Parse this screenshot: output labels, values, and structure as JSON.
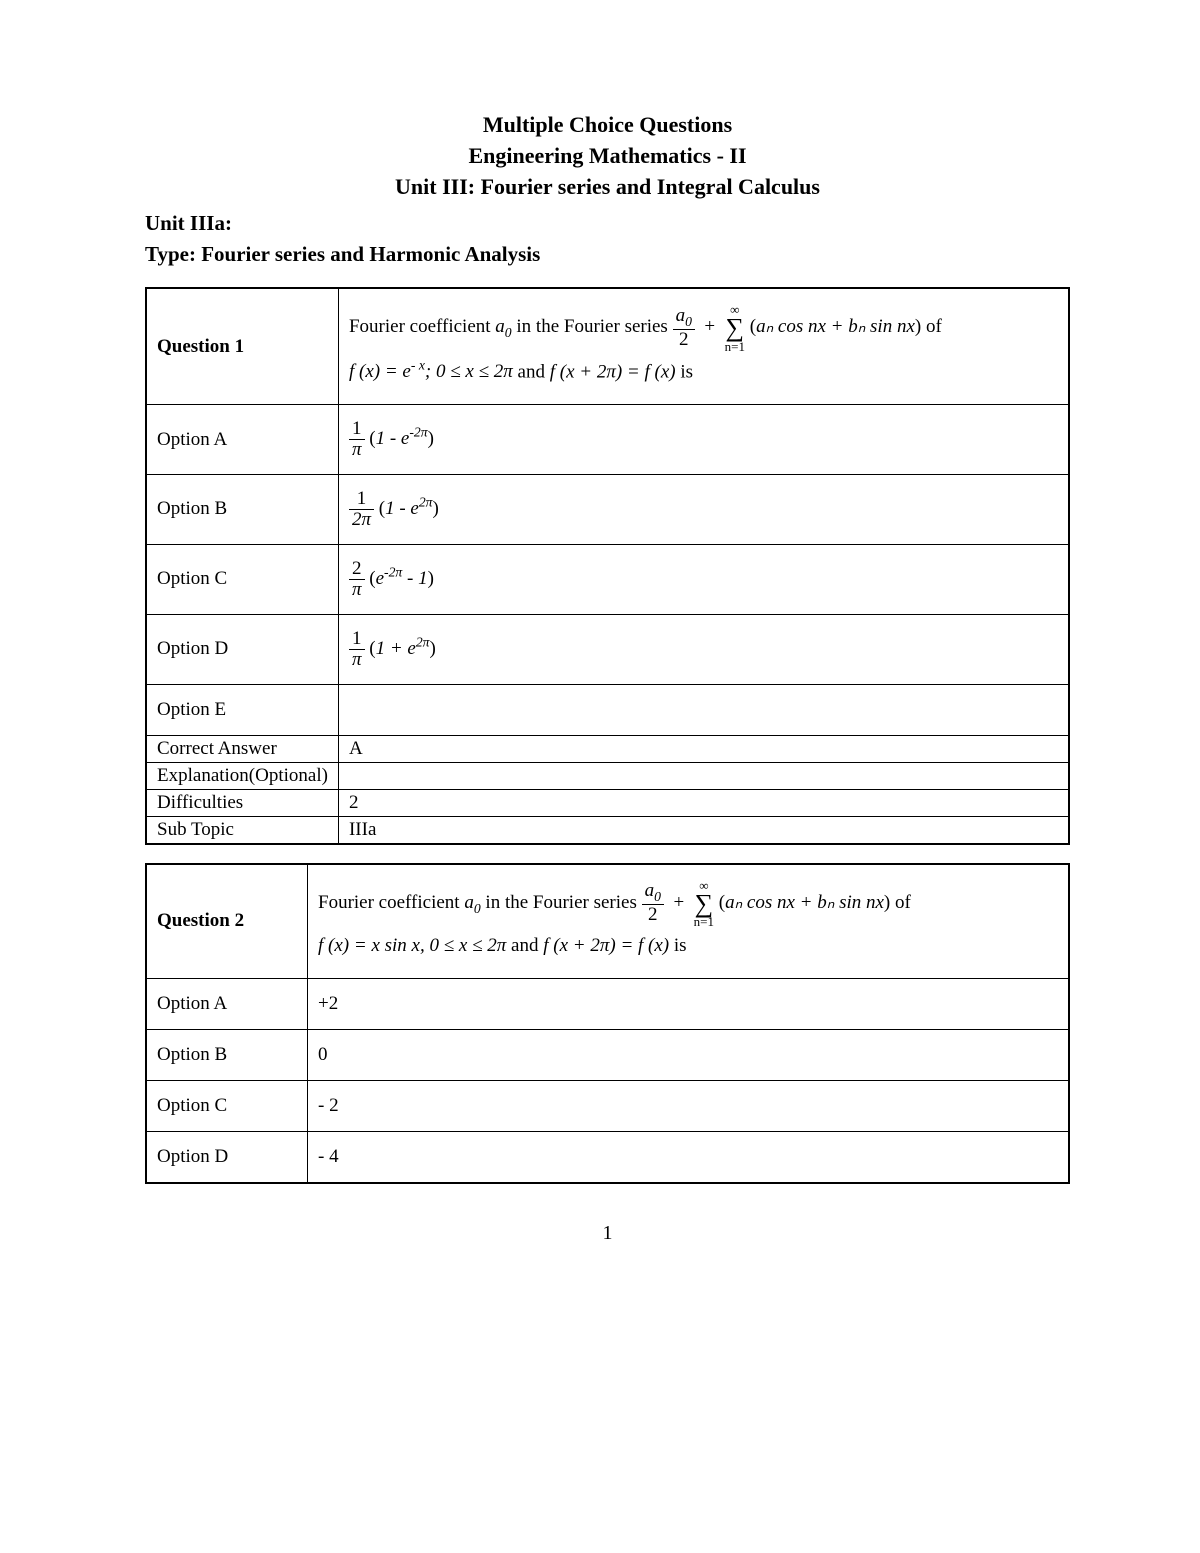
{
  "header": {
    "line1": "Multiple Choice Questions",
    "line2": "Engineering Mathematics - II",
    "line3": "Unit III: Fourier series and Integral Calculus"
  },
  "subheader": {
    "unit": "Unit IIIa:",
    "type": "Type: Fourier series and Harmonic Analysis"
  },
  "labels": {
    "optA": "Option A",
    "optB": "Option B",
    "optC": "Option C",
    "optD": "Option D",
    "optE": "Option E",
    "correct": "Correct Answer",
    "explain": "Explanation(Optional)",
    "diff": "Difficulties",
    "sub": "Sub Topic"
  },
  "q1": {
    "title": "Question 1",
    "text_prefix": "Fourier coefficient ",
    "a0": "a",
    "a0sub": "0",
    "text_mid": " in the Fourier series ",
    "series_a0n": "a",
    "series_a0d": "2",
    "sum_top": "∞",
    "sum_bot": "n=1",
    "series_body_open": "(",
    "series_body": "aₙ cos nx + bₙ sin nx",
    "series_body_close": ")",
    "text_of": " of",
    "fx1": "f (x) = e",
    "fx1_sup": "- x",
    "fx1_tail": "; 0 ≤ x ≤ 2π",
    "and": " and ",
    "fx2": "f (x + 2π) = f (x)",
    "is": " is",
    "A_num": "1",
    "A_den": "π",
    "A_tail_open": "(",
    "A_tail": "1 - e",
    "A_tail_sup": "-2π",
    "A_tail_close": ")",
    "B_num": "1",
    "B_den": "2π",
    "B_tail_open": "(",
    "B_tail": "1 - e",
    "B_tail_sup": "2π",
    "B_tail_close": ")",
    "C_num": "2",
    "C_den": "π",
    "C_tail_open": "(",
    "C_tail": "e",
    "C_tail_sup": "-2π",
    "C_tail_mid": " - 1",
    "C_tail_close": ")",
    "D_num": "1",
    "D_den": "π",
    "D_tail_open": "(",
    "D_tail": "1 + e",
    "D_tail_sup": "2π",
    "D_tail_close": ")",
    "E": "",
    "correct": "A",
    "explain": "",
    "diff": "2",
    "sub": "IIIa"
  },
  "q2": {
    "title": "Question 2",
    "text_prefix": "Fourier coefficient ",
    "a0": "a",
    "a0sub": "0",
    "text_mid": " in the Fourier series ",
    "series_a0n": "a",
    "series_a0d": "2",
    "sum_top": "∞",
    "sum_bot": "n=1",
    "series_body_open": "(",
    "series_body": "aₙ cos nx + bₙ sin nx",
    "series_body_close": ")",
    "text_of": " of",
    "fx1": "f (x) = x sin x, 0 ≤ x ≤ 2π",
    "and": " and ",
    "fx2": "f (x + 2π) = f (x)",
    "is": " is",
    "A": "+2",
    "B": "0",
    "C": "- 2",
    "D": "- 4"
  },
  "page_number": "1"
}
